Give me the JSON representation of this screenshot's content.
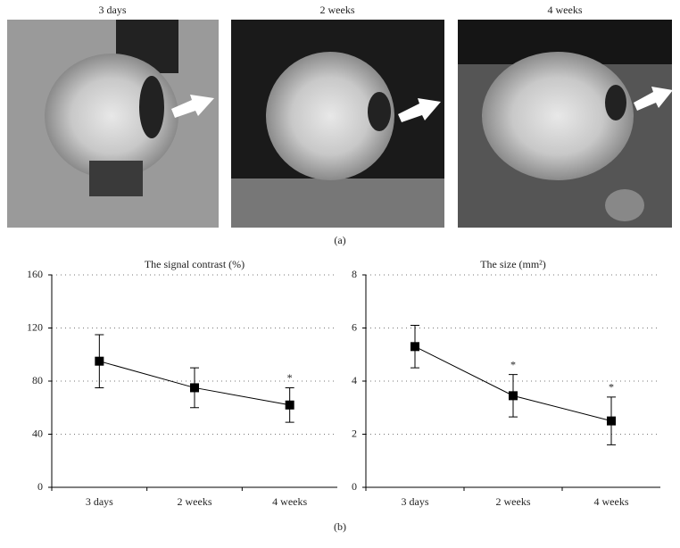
{
  "images": {
    "labels": [
      "3 days",
      "2 weeks",
      "4 weeks"
    ],
    "caption": "(a)"
  },
  "caption_b": "(b)",
  "chart_data": [
    {
      "type": "line",
      "title": "The signal contrast (%)",
      "categories": [
        "3 days",
        "2 weeks",
        "4 weeks"
      ],
      "values": [
        95,
        75,
        62
      ],
      "errors": [
        20,
        15,
        13
      ],
      "color": "#000000",
      "ylim": [
        0,
        160
      ],
      "yticks": [
        0,
        40,
        80,
        120,
        160
      ],
      "grid": true,
      "annotations": [
        {
          "category": "4 weeks",
          "text": "*"
        }
      ]
    },
    {
      "type": "line",
      "title": "The size (mm²)",
      "categories": [
        "3 days",
        "2 weeks",
        "4 weeks"
      ],
      "values": [
        5.3,
        3.45,
        2.5
      ],
      "errors": [
        0.8,
        0.8,
        0.9
      ],
      "color": "#000000",
      "ylim": [
        0,
        8
      ],
      "yticks": [
        0,
        2,
        4,
        6,
        8
      ],
      "grid": true,
      "annotations": [
        {
          "category": "2 weeks",
          "text": "*"
        },
        {
          "category": "4 weeks",
          "text": "*"
        }
      ]
    }
  ]
}
